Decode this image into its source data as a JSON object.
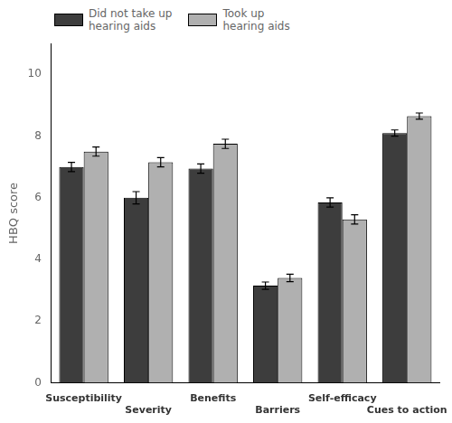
{
  "chart_data": {
    "type": "bar",
    "categories": [
      "Susceptibility",
      "Severity",
      "Benefits",
      "Barriers",
      "Self-efficacy",
      "Cues to action"
    ],
    "series": [
      {
        "name": "Did not take up\nhearing aids",
        "color": "#3d3d3d",
        "values": [
          7.0,
          6.0,
          6.95,
          3.15,
          5.85,
          8.1
        ],
        "errors": [
          0.15,
          0.2,
          0.15,
          0.12,
          0.15,
          0.1
        ]
      },
      {
        "name": "Took up\nhearing aids",
        "color": "#b0b0b0",
        "values": [
          7.5,
          7.15,
          7.75,
          3.4,
          5.3,
          8.65
        ],
        "errors": [
          0.15,
          0.15,
          0.15,
          0.12,
          0.15,
          0.1
        ]
      }
    ],
    "ylabel": "HBQ score",
    "ylim": [
      0,
      11
    ],
    "yticks": [
      0,
      2,
      4,
      6,
      8,
      10
    ],
    "grid": false,
    "legend": "upper left"
  }
}
